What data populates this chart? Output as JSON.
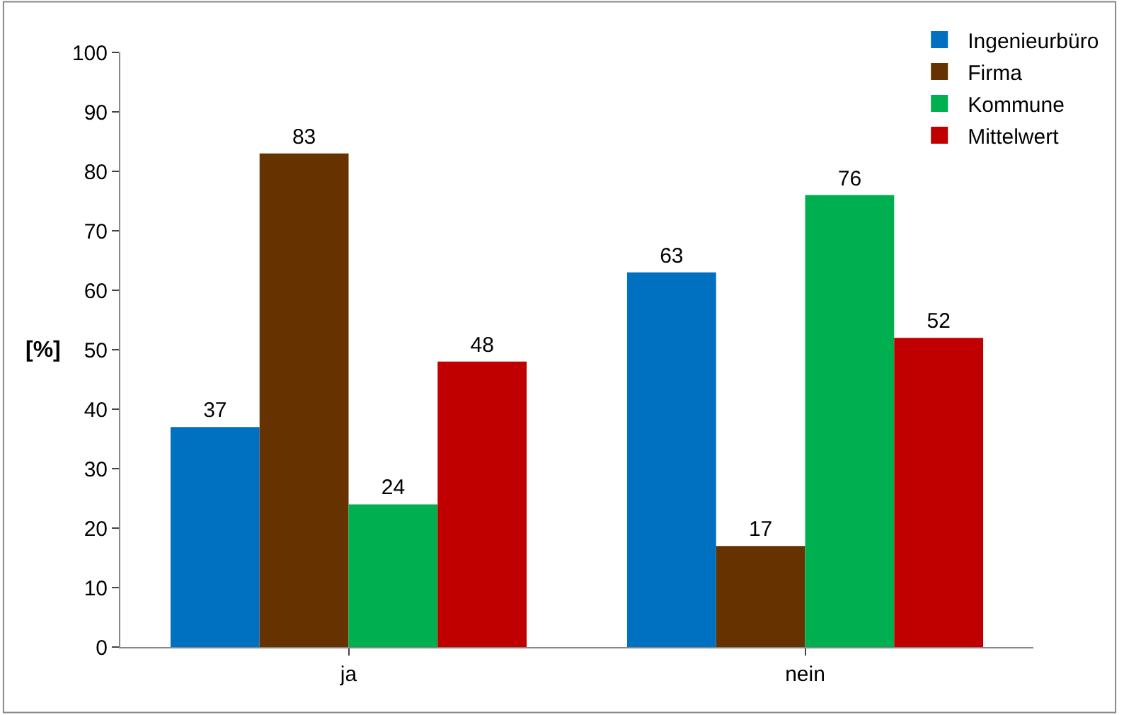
{
  "chart_data": {
    "type": "bar",
    "ylabel": "[%]",
    "categories": [
      "ja",
      "nein"
    ],
    "series": [
      {
        "name": "Ingenieurbüro",
        "color": "#0070c0",
        "values": [
          37,
          63
        ]
      },
      {
        "name": "Firma",
        "color": "#663300",
        "values": [
          83,
          17
        ]
      },
      {
        "name": "Kommune",
        "color": "#00b050",
        "values": [
          24,
          76
        ]
      },
      {
        "name": "Mittelwert",
        "color": "#c00000",
        "values": [
          48,
          52
        ]
      }
    ],
    "ylim": [
      0,
      100
    ],
    "yticks": [
      0,
      10,
      20,
      30,
      40,
      50,
      60,
      70,
      80,
      90,
      100
    ],
    "data_labels": true,
    "legend": "top right"
  }
}
